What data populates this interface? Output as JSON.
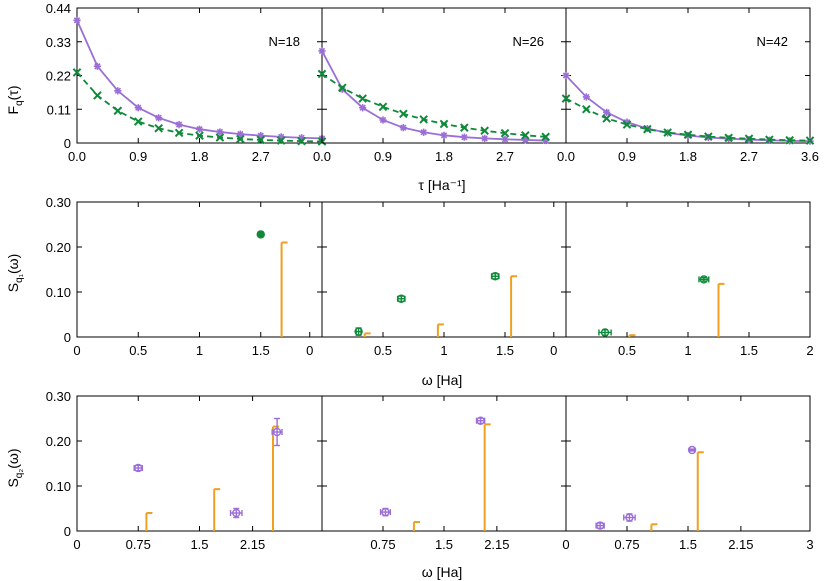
{
  "colors": {
    "purple": "#9b6fd6",
    "green": "#0f8a3a",
    "orange": "#f0a020",
    "frame": "#000000"
  },
  "row_labels": {
    "top_y": "F",
    "top_y_sub": "q",
    "top_y_tail": "(τ)",
    "top_x": "τ [Ha⁻¹]",
    "mid_y": "S",
    "mid_y_sub": "q₁",
    "mid_y_tail": "(ω)",
    "mid_x": "ω [Ha]",
    "bot_y": "S",
    "bot_y_sub": "q₂",
    "bot_y_tail": "(ω)",
    "bot_x": "ω [Ha]"
  },
  "chart_data": [
    {
      "id": "top-N18",
      "type": "line",
      "annotation": "N=18",
      "xlim": [
        0,
        3.6
      ],
      "ylim": [
        0,
        0.44
      ],
      "xticks": [
        "0.0",
        "0.9",
        "1.8",
        "2.7",
        ""
      ],
      "xtick_values": [
        0,
        0.9,
        1.8,
        2.7,
        3.6
      ],
      "yticks": [
        "0",
        "0.11",
        "0.22",
        "0.33",
        "0.44"
      ],
      "ytick_values": [
        0,
        0.11,
        0.22,
        0.33,
        0.44
      ],
      "series": [
        {
          "color": "purple",
          "style": "solid",
          "marker": "star",
          "x": [
            0,
            0.3,
            0.6,
            0.9,
            1.2,
            1.5,
            1.8,
            2.1,
            2.4,
            2.7,
            3.0,
            3.3,
            3.6
          ],
          "y": [
            0.4,
            0.25,
            0.17,
            0.115,
            0.082,
            0.06,
            0.045,
            0.036,
            0.029,
            0.024,
            0.02,
            0.017,
            0.015
          ]
        },
        {
          "color": "green",
          "style": "dashed",
          "marker": "x",
          "x": [
            0,
            0.3,
            0.6,
            0.9,
            1.2,
            1.5,
            1.8,
            2.1,
            2.4,
            2.7,
            3.0,
            3.3,
            3.6
          ],
          "y": [
            0.23,
            0.155,
            0.105,
            0.07,
            0.048,
            0.033,
            0.024,
            0.018,
            0.013,
            0.01,
            0.008,
            0.006,
            0.005
          ]
        }
      ]
    },
    {
      "id": "top-N26",
      "type": "line",
      "annotation": "N=26",
      "xlim": [
        0,
        3.6
      ],
      "ylim": [
        0,
        0.44
      ],
      "xticks": [
        "0.0",
        "0.9",
        "1.8",
        "2.7",
        ""
      ],
      "xtick_values": [
        0,
        0.9,
        1.8,
        2.7,
        3.6
      ],
      "yticks": [],
      "ytick_values": [
        0,
        0.11,
        0.22,
        0.33,
        0.44
      ],
      "series": [
        {
          "color": "purple",
          "style": "solid",
          "marker": "star",
          "x": [
            0,
            0.3,
            0.6,
            0.9,
            1.2,
            1.5,
            1.8,
            2.1,
            2.4,
            2.7,
            3.0,
            3.3
          ],
          "y": [
            0.3,
            0.175,
            0.115,
            0.075,
            0.05,
            0.035,
            0.025,
            0.019,
            0.015,
            0.012,
            0.01,
            0.008
          ]
        },
        {
          "color": "green",
          "style": "dashed",
          "marker": "x",
          "x": [
            0,
            0.3,
            0.6,
            0.9,
            1.2,
            1.5,
            1.8,
            2.1,
            2.4,
            2.7,
            3.0,
            3.3
          ],
          "y": [
            0.225,
            0.18,
            0.145,
            0.118,
            0.095,
            0.077,
            0.062,
            0.05,
            0.04,
            0.032,
            0.025,
            0.02
          ]
        }
      ]
    },
    {
      "id": "top-N42",
      "type": "line",
      "annotation": "N=42",
      "xlim": [
        0,
        3.6
      ],
      "ylim": [
        0,
        0.44
      ],
      "xticks": [
        "0.0",
        "0.9",
        "1.8",
        "2.7",
        "3.6"
      ],
      "xtick_values": [
        0,
        0.9,
        1.8,
        2.7,
        3.6
      ],
      "yticks": [],
      "ytick_values": [
        0,
        0.11,
        0.22,
        0.33,
        0.44
      ],
      "series": [
        {
          "color": "purple",
          "style": "solid",
          "marker": "star",
          "x": [
            0,
            0.3,
            0.6,
            0.9,
            1.2,
            1.5,
            1.8,
            2.1,
            2.4,
            2.7,
            3.0,
            3.3,
            3.6
          ],
          "y": [
            0.22,
            0.15,
            0.1,
            0.068,
            0.047,
            0.033,
            0.024,
            0.018,
            0.014,
            0.011,
            0.009,
            0.007,
            0.006
          ]
        },
        {
          "color": "green",
          "style": "dashed",
          "marker": "x",
          "x": [
            0,
            0.3,
            0.6,
            0.9,
            1.2,
            1.5,
            1.8,
            2.1,
            2.4,
            2.7,
            3.0,
            3.3,
            3.6
          ],
          "y": [
            0.145,
            0.11,
            0.08,
            0.06,
            0.045,
            0.034,
            0.027,
            0.021,
            0.017,
            0.014,
            0.011,
            0.009,
            0.008
          ]
        }
      ]
    },
    {
      "id": "mid-1",
      "type": "scatter",
      "xlim": [
        0,
        2
      ],
      "ylim": [
        0,
        0.3
      ],
      "xticks": [
        "0",
        "0.5",
        "1",
        "1.5",
        "0"
      ],
      "xtick_values": [
        0,
        0.5,
        1,
        1.5,
        1.9
      ],
      "yticks": [
        "0",
        "0.10",
        "0.20",
        "0.30"
      ],
      "ytick_values": [
        0,
        0.1,
        0.2,
        0.3
      ],
      "points": [
        {
          "x": 1.5,
          "y": 0.228,
          "xerr": 0.02,
          "yerr": 0.003,
          "color": "green",
          "marker": "filled"
        }
      ],
      "sticks": [
        {
          "x": 1.67,
          "y": 0.21
        }
      ]
    },
    {
      "id": "mid-2",
      "type": "scatter",
      "xlim": [
        0,
        2
      ],
      "ylim": [
        0,
        0.3
      ],
      "xticks": [
        "",
        "0.5",
        "1",
        "1.5",
        "0"
      ],
      "xtick_values": [
        0,
        0.5,
        1,
        1.5,
        1.9
      ],
      "yticks": [],
      "ytick_values": [
        0,
        0.1,
        0.2,
        0.3
      ],
      "points": [
        {
          "x": 0.3,
          "y": 0.012,
          "xerr": 0.02,
          "yerr": 0.008,
          "color": "green",
          "marker": "open"
        },
        {
          "x": 0.65,
          "y": 0.085,
          "xerr": 0.03,
          "yerr": 0.006,
          "color": "green",
          "marker": "open"
        },
        {
          "x": 1.42,
          "y": 0.135,
          "xerr": 0.03,
          "yerr": 0.006,
          "color": "green",
          "marker": "open"
        }
      ],
      "sticks": [
        {
          "x": 0.35,
          "y": 0.008
        },
        {
          "x": 0.95,
          "y": 0.028
        },
        {
          "x": 1.55,
          "y": 0.135
        }
      ]
    },
    {
      "id": "mid-3",
      "type": "scatter",
      "xlim": [
        0,
        2
      ],
      "ylim": [
        0,
        0.3
      ],
      "xticks": [
        "",
        "0.5",
        "1",
        "1.5",
        "2"
      ],
      "xtick_values": [
        0,
        0.5,
        1,
        1.5,
        2
      ],
      "yticks": [],
      "ytick_values": [
        0,
        0.1,
        0.2,
        0.3
      ],
      "points": [
        {
          "x": 0.32,
          "y": 0.01,
          "xerr": 0.05,
          "yerr": 0.006,
          "color": "green",
          "marker": "open"
        },
        {
          "x": 1.13,
          "y": 0.128,
          "xerr": 0.04,
          "yerr": 0.004,
          "color": "green",
          "marker": "open"
        }
      ],
      "sticks": [
        {
          "x": 0.52,
          "y": 0.004
        },
        {
          "x": 1.25,
          "y": 0.118
        }
      ]
    },
    {
      "id": "bot-1",
      "type": "scatter",
      "xlim": [
        0,
        3
      ],
      "ylim": [
        0,
        0.3
      ],
      "xticks": [
        "0",
        "0.75",
        "1.5",
        "2.15",
        ""
      ],
      "xtick_values": [
        0,
        0.75,
        1.5,
        2.15,
        3
      ],
      "yticks": [
        "0",
        "0.10",
        "0.20",
        "0.30"
      ],
      "ytick_values": [
        0,
        0.1,
        0.2,
        0.3
      ],
      "points": [
        {
          "x": 0.75,
          "y": 0.14,
          "xerr": 0.05,
          "yerr": 0.006,
          "color": "purple",
          "marker": "open"
        },
        {
          "x": 1.95,
          "y": 0.04,
          "xerr": 0.07,
          "yerr": 0.01,
          "color": "purple",
          "marker": "open"
        },
        {
          "x": 2.45,
          "y": 0.22,
          "xerr": 0.06,
          "yerr": 0.03,
          "color": "purple",
          "marker": "open"
        }
      ],
      "sticks": [
        {
          "x": 0.85,
          "y": 0.04
        },
        {
          "x": 1.68,
          "y": 0.093
        },
        {
          "x": 2.4,
          "y": 0.232
        }
      ]
    },
    {
      "id": "bot-2",
      "type": "scatter",
      "xlim": [
        0,
        3
      ],
      "ylim": [
        0,
        0.3
      ],
      "xticks": [
        "",
        "0.75",
        "1.5",
        "2.15",
        ""
      ],
      "xtick_values": [
        0,
        0.75,
        1.5,
        2.15,
        3
      ],
      "yticks": [],
      "ytick_values": [
        0,
        0.1,
        0.2,
        0.3
      ],
      "points": [
        {
          "x": 0.78,
          "y": 0.042,
          "xerr": 0.06,
          "yerr": 0.008,
          "color": "purple",
          "marker": "open"
        },
        {
          "x": 1.95,
          "y": 0.245,
          "xerr": 0.05,
          "yerr": 0.006,
          "color": "purple",
          "marker": "open"
        }
      ],
      "sticks": [
        {
          "x": 1.13,
          "y": 0.02
        },
        {
          "x": 2.0,
          "y": 0.237
        }
      ]
    },
    {
      "id": "bot-3",
      "type": "scatter",
      "xlim": [
        0,
        3
      ],
      "ylim": [
        0,
        0.3
      ],
      "xticks": [
        "0",
        "0.75",
        "1.5",
        "2.15",
        "3"
      ],
      "xtick_values": [
        0,
        0.75,
        1.5,
        2.15,
        3
      ],
      "yticks": [],
      "ytick_values": [
        0,
        0.1,
        0.2,
        0.3
      ],
      "points": [
        {
          "x": 0.42,
          "y": 0.012,
          "xerr": 0.05,
          "yerr": 0.006,
          "color": "purple",
          "marker": "open"
        },
        {
          "x": 0.78,
          "y": 0.03,
          "xerr": 0.07,
          "yerr": 0.008,
          "color": "purple",
          "marker": "open"
        },
        {
          "x": 1.55,
          "y": 0.18,
          "xerr": 0.03,
          "yerr": 0.002,
          "color": "purple",
          "marker": "open"
        }
      ],
      "sticks": [
        {
          "x": 1.05,
          "y": 0.015
        },
        {
          "x": 1.62,
          "y": 0.175
        }
      ]
    }
  ]
}
